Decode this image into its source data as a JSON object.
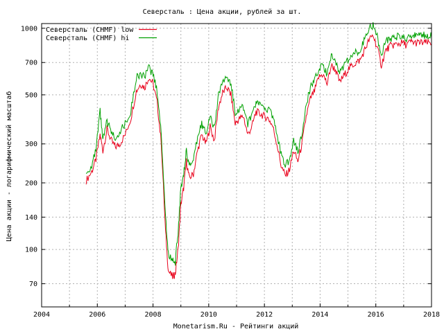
{
  "chart_data": {
    "type": "line",
    "title": "Северсталь : Цена акции, рублей за шт.",
    "xlabel": "Monetarism.Ru - Рейтинги акций",
    "ylabel": "Цена акции - логарифмический масштаб",
    "y_scale": "log",
    "grid": true,
    "legend_position": "top-left",
    "xlim": [
      2004,
      2018
    ],
    "ylim": [
      55,
      1050
    ],
    "x_ticks": [
      "2004",
      "2006",
      "2008",
      "2010",
      "2012",
      "2014",
      "2016",
      "2018"
    ],
    "y_ticks": [
      "70",
      "100",
      "140",
      "200",
      "300",
      "500",
      "700",
      "1000"
    ],
    "series": [
      {
        "name": "Северсталь (CHMF) low",
        "color": "#e8001a",
        "x": [
          2005.6,
          2005.8,
          2005.95,
          2006.1,
          2006.2,
          2006.35,
          2006.5,
          2006.65,
          2006.8,
          2007.0,
          2007.2,
          2007.4,
          2007.55,
          2007.7,
          2007.85,
          2008.0,
          2008.15,
          2008.3,
          2008.45,
          2008.55,
          2008.7,
          2008.8,
          2008.9,
          2009.0,
          2009.1,
          2009.2,
          2009.3,
          2009.45,
          2009.6,
          2009.75,
          2009.9,
          2010.05,
          2010.2,
          2010.35,
          2010.5,
          2010.65,
          2010.8,
          2010.95,
          2011.1,
          2011.25,
          2011.4,
          2011.55,
          2011.7,
          2011.85,
          2012.0,
          2012.15,
          2012.3,
          2012.45,
          2012.6,
          2012.75,
          2012.9,
          2013.05,
          2013.2,
          2013.35,
          2013.5,
          2013.65,
          2013.8,
          2013.95,
          2014.1,
          2014.25,
          2014.4,
          2014.55,
          2014.7,
          2014.85,
          2015.0,
          2015.15,
          2015.3,
          2015.45,
          2015.6,
          2015.75,
          2015.9,
          2016.05,
          2016.2,
          2016.35,
          2016.5,
          2016.65,
          2016.8,
          2016.95,
          2017.1,
          2017.25,
          2017.4,
          2017.55,
          2017.7,
          2017.85,
          2018.0
        ],
        "values": [
          205,
          225,
          255,
          330,
          280,
          350,
          310,
          290,
          300,
          330,
          390,
          520,
          560,
          540,
          600,
          560,
          460,
          300,
          120,
          80,
          75,
          78,
          100,
          160,
          190,
          250,
          210,
          220,
          280,
          330,
          300,
          360,
          310,
          440,
          510,
          540,
          500,
          370,
          390,
          400,
          330,
          360,
          420,
          410,
          400,
          390,
          360,
          300,
          240,
          215,
          230,
          280,
          250,
          300,
          400,
          480,
          520,
          600,
          620,
          560,
          680,
          650,
          570,
          610,
          650,
          680,
          700,
          720,
          800,
          880,
          930,
          820,
          680,
          790,
          830,
          840,
          850,
          860,
          840,
          870,
          860,
          860,
          860,
          860,
          860
        ]
      },
      {
        "name": "Северсталь (CHMF) hi",
        "color": "#00a000",
        "x": [
          2005.6,
          2005.8,
          2005.95,
          2006.1,
          2006.2,
          2006.35,
          2006.5,
          2006.65,
          2006.8,
          2007.0,
          2007.2,
          2007.4,
          2007.55,
          2007.7,
          2007.85,
          2008.0,
          2008.15,
          2008.3,
          2008.45,
          2008.55,
          2008.7,
          2008.8,
          2008.9,
          2009.0,
          2009.1,
          2009.2,
          2009.3,
          2009.45,
          2009.6,
          2009.75,
          2009.9,
          2010.05,
          2010.2,
          2010.35,
          2010.5,
          2010.65,
          2010.8,
          2010.95,
          2011.1,
          2011.25,
          2011.4,
          2011.55,
          2011.7,
          2011.85,
          2012.0,
          2012.15,
          2012.3,
          2012.45,
          2012.6,
          2012.75,
          2012.9,
          2013.05,
          2013.2,
          2013.35,
          2013.5,
          2013.65,
          2013.8,
          2013.95,
          2014.1,
          2014.25,
          2014.4,
          2014.55,
          2014.7,
          2014.85,
          2015.0,
          2015.15,
          2015.3,
          2015.45,
          2015.6,
          2015.75,
          2015.9,
          2016.05,
          2016.2,
          2016.35,
          2016.5,
          2016.65,
          2016.8,
          2016.95,
          2017.1,
          2017.25,
          2017.4,
          2017.55,
          2017.7,
          2017.85,
          2018.0
        ],
        "values": [
          220,
          240,
          280,
          420,
          310,
          380,
          340,
          320,
          340,
          370,
          420,
          600,
          620,
          600,
          660,
          620,
          520,
          330,
          140,
          95,
          90,
          88,
          120,
          190,
          220,
          280,
          240,
          250,
          320,
          370,
          340,
          400,
          350,
          500,
          580,
          590,
          560,
          420,
          430,
          440,
          370,
          400,
          460,
          450,
          440,
          430,
          400,
          330,
          270,
          240,
          255,
          310,
          280,
          330,
          450,
          540,
          580,
          650,
          680,
          620,
          740,
          720,
          630,
          680,
          720,
          760,
          780,
          800,
          900,
          1000,
          1030,
          920,
          760,
          880,
          900,
          910,
          920,
          920,
          900,
          930,
          930,
          930,
          930,
          930,
          930
        ]
      }
    ]
  }
}
